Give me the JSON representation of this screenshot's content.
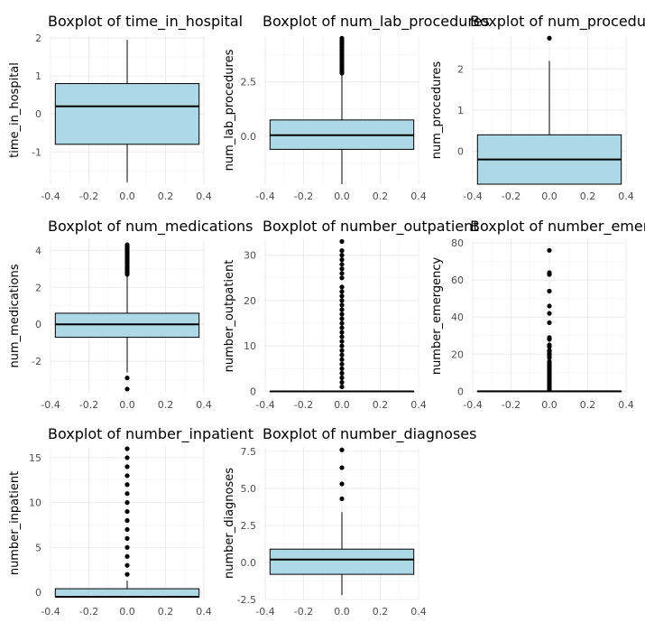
{
  "chart_data": [
    {
      "type": "boxplot",
      "title": "Boxplot of time_in_hospital",
      "ylabel": "time_in_hospital",
      "xlim": [
        -0.4,
        0.4
      ],
      "x_ticks": [
        "-0.4",
        "-0.2",
        "0.0",
        "0.2",
        "0.4"
      ],
      "ylim": [
        -1.85,
        2.05
      ],
      "y_ticks": [
        {
          "value": 2,
          "label": "2"
        },
        {
          "value": 1,
          "label": "1"
        },
        {
          "value": 0,
          "label": "0"
        },
        {
          "value": -1,
          "label": "-1"
        }
      ],
      "box": {
        "q1": -0.8,
        "median": 0.2,
        "q3": 0.8,
        "whisker_low": -1.8,
        "whisker_high": 1.95
      },
      "outliers": [],
      "fill": "#add8e6"
    },
    {
      "type": "boxplot",
      "title": "Boxplot of num_lab_procedures",
      "ylabel": "num_lab_procedures",
      "xlim": [
        -0.4,
        0.4
      ],
      "x_ticks": [
        "-0.4",
        "-0.2",
        "0.0",
        "0.2",
        "0.4"
      ],
      "ylim": [
        -2.2,
        4.6
      ],
      "y_ticks": [
        {
          "value": 2.5,
          "label": "2.5"
        },
        {
          "value": 0,
          "label": "0.0"
        }
      ],
      "box": {
        "q1": -0.6,
        "median": 0.05,
        "q3": 0.75,
        "whisker_low": -2.2,
        "whisker_high": 2.8
      },
      "outliers": [
        2.9,
        3.0,
        3.1,
        3.2,
        3.3,
        3.4,
        3.5,
        3.6,
        3.7,
        3.8,
        3.9,
        4.0,
        4.1,
        4.2,
        4.3,
        4.4,
        4.5
      ],
      "fill": "#add8e6"
    },
    {
      "type": "boxplot",
      "title": "Boxplot of num_procedures",
      "ylabel": "num_procedures",
      "xlim": [
        -0.4,
        0.4
      ],
      "x_ticks": [
        "-0.4",
        "-0.2",
        "0.0",
        "0.2",
        "0.4"
      ],
      "ylim": [
        -0.8,
        2.8
      ],
      "y_ticks": [
        {
          "value": 2,
          "label": "2"
        },
        {
          "value": 1,
          "label": "1"
        },
        {
          "value": 0,
          "label": "0"
        }
      ],
      "box": {
        "q1": -0.8,
        "median": -0.2,
        "q3": 0.4,
        "whisker_low": -0.8,
        "whisker_high": 2.2
      },
      "outliers": [
        2.75
      ],
      "fill": "#add8e6"
    },
    {
      "type": "boxplot",
      "title": "Boxplot of num_medications",
      "ylabel": "num_medications",
      "xlim": [
        -0.4,
        0.4
      ],
      "x_ticks": [
        "-0.4",
        "-0.2",
        "0.0",
        "0.2",
        "0.4"
      ],
      "ylim": [
        -3.7,
        4.6
      ],
      "y_ticks": [
        {
          "value": 4,
          "label": "4"
        },
        {
          "value": 2,
          "label": "2"
        },
        {
          "value": 0,
          "label": "0"
        },
        {
          "value": -2,
          "label": "-2"
        }
      ],
      "box": {
        "q1": -0.7,
        "median": 0.0,
        "q3": 0.6,
        "whisker_low": -2.6,
        "whisker_high": 2.6
      },
      "outliers": [
        -3.5,
        -2.9,
        2.7,
        2.8,
        2.9,
        3.0,
        3.1,
        3.2,
        3.3,
        3.4,
        3.5,
        3.6,
        3.7,
        3.8,
        3.9,
        4.0,
        4.1,
        4.2,
        4.3
      ],
      "fill": "#add8e6"
    },
    {
      "type": "boxplot",
      "title": "Boxplot of number_outpatient",
      "ylabel": "number_outpatient",
      "xlim": [
        -0.4,
        0.4
      ],
      "x_ticks": [
        "-0.4",
        "-0.2",
        "0.0",
        "0.2",
        "0.4"
      ],
      "ylim": [
        -0.3,
        33.5
      ],
      "y_ticks": [
        {
          "value": 30,
          "label": "30"
        },
        {
          "value": 20,
          "label": "20"
        },
        {
          "value": 10,
          "label": "10"
        },
        {
          "value": 0,
          "label": "0"
        }
      ],
      "box": {
        "q1": 0,
        "median": 0,
        "q3": 0,
        "whisker_low": 0,
        "whisker_high": 0
      },
      "outliers": [
        1,
        2,
        3,
        4,
        5,
        6,
        7,
        8,
        9,
        10,
        11,
        12,
        13,
        14,
        15,
        16,
        17,
        18,
        19,
        20,
        21,
        22,
        23,
        25,
        26,
        27,
        28,
        29,
        30,
        31,
        33
      ],
      "fill": "#add8e6"
    },
    {
      "type": "boxplot",
      "title": "Boxplot of number_emergency",
      "ylabel": "number_emergency",
      "xlim": [
        -0.4,
        0.4
      ],
      "x_ticks": [
        "-0.4",
        "-0.2",
        "0.0",
        "0.2",
        "0.4"
      ],
      "ylim": [
        -0.8,
        82
      ],
      "y_ticks": [
        {
          "value": 80,
          "label": "80"
        },
        {
          "value": 60,
          "label": "60"
        },
        {
          "value": 40,
          "label": "40"
        },
        {
          "value": 20,
          "label": "20"
        },
        {
          "value": 0,
          "label": "0"
        }
      ],
      "box": {
        "q1": 0,
        "median": 0,
        "q3": 0,
        "whisker_low": 0,
        "whisker_high": 0
      },
      "outliers": [
        1,
        2,
        3,
        4,
        5,
        6,
        7,
        8,
        9,
        10,
        11,
        12,
        13,
        14,
        15,
        16,
        18,
        19,
        20,
        21,
        22,
        24,
        25,
        28,
        29,
        37,
        42,
        46,
        54,
        63,
        64,
        76
      ],
      "fill": "#add8e6"
    },
    {
      "type": "boxplot",
      "title": "Boxplot of number_inpatient",
      "ylabel": "number_inpatient",
      "xlim": [
        -0.4,
        0.4
      ],
      "x_ticks": [
        "-0.4",
        "-0.2",
        "0.0",
        "0.2",
        "0.4"
      ],
      "ylim": [
        -0.8,
        16.2
      ],
      "y_ticks": [
        {
          "value": 15,
          "label": "15"
        },
        {
          "value": 10,
          "label": "10"
        },
        {
          "value": 5,
          "label": "5"
        },
        {
          "value": 0,
          "label": "0"
        }
      ],
      "box": {
        "q1": -0.5,
        "median": -0.5,
        "q3": 0.4,
        "whisker_low": -0.5,
        "whisker_high": 1.3
      },
      "outliers": [
        2,
        3,
        4,
        5,
        6,
        7,
        8,
        9,
        10,
        11,
        12,
        13,
        14,
        15,
        16
      ],
      "fill": "#add8e6"
    },
    {
      "type": "boxplot",
      "title": "Boxplot of number_diagnoses",
      "ylabel": "number_diagnoses",
      "xlim": [
        -0.4,
        0.4
      ],
      "x_ticks": [
        "-0.4",
        "-0.2",
        "0.0",
        "0.2",
        "0.4"
      ],
      "ylim": [
        -2.5,
        7.8
      ],
      "y_ticks": [
        {
          "value": 7.5,
          "label": "7.5"
        },
        {
          "value": 5,
          "label": "5.0"
        },
        {
          "value": 2.5,
          "label": "2.5"
        },
        {
          "value": 0,
          "label": "0.0"
        },
        {
          "value": -2.5,
          "label": "-2.5"
        }
      ],
      "box": {
        "q1": -0.8,
        "median": 0.2,
        "q3": 0.9,
        "whisker_low": -2.2,
        "whisker_high": 3.4
      },
      "outliers": [
        4.3,
        5.3,
        6.4,
        7.6
      ],
      "fill": "#add8e6"
    }
  ]
}
